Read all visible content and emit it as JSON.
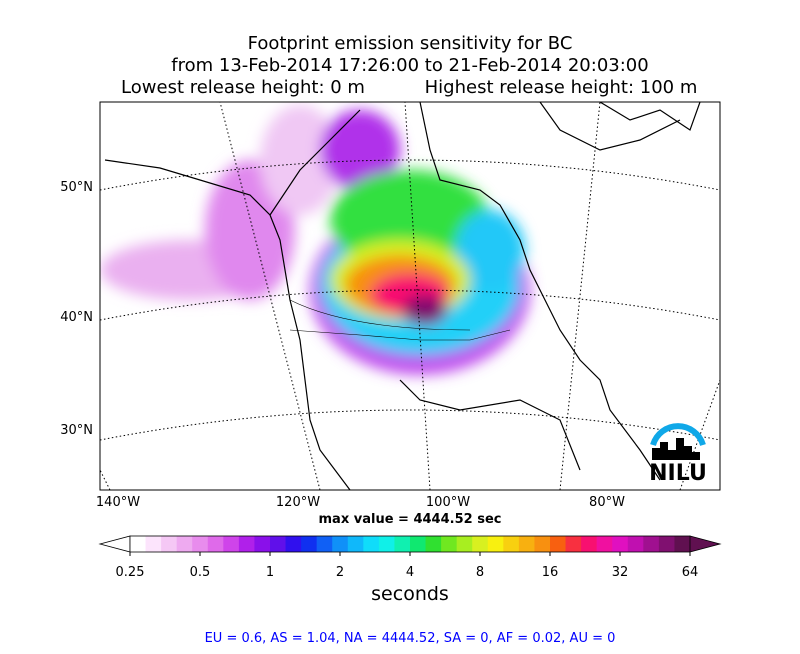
{
  "header": {
    "title_lines": [
      "Footprint emission sensitivity for BC",
      "from 13-Feb-2014 17:26:00 to 21-Feb-2014 20:03:00",
      "Lowest release height: 0 m",
      "Highest release height: 100 m"
    ]
  },
  "map": {
    "lon_labels": [
      "140°W",
      "120°W",
      "100°W",
      "80°W"
    ],
    "lat_labels": [
      "50°N",
      "40°N",
      "30°N"
    ],
    "logo": "NILU",
    "max_value": "max value = 4444.52 sec"
  },
  "colorbar": {
    "label": "seconds",
    "log": true,
    "lim": [
      0.25,
      64
    ],
    "ticks": [
      0.25,
      0.5,
      1,
      2,
      4,
      8,
      16,
      32,
      64
    ],
    "colors": [
      "#ffffff",
      "#fce4fc",
      "#f5c8f5",
      "#eeaaf0",
      "#e88ced",
      "#df6aea",
      "#cf44ea",
      "#b020ea",
      "#8a10ea",
      "#6010ea",
      "#3010ee",
      "#1030f0",
      "#1060f5",
      "#1090f8",
      "#10b8fa",
      "#10dcfa",
      "#10f0e8",
      "#10f0b0",
      "#10e870",
      "#30e030",
      "#70e820",
      "#a8ee20",
      "#d8f020",
      "#f8f010",
      "#f8d010",
      "#f8b010",
      "#f89010",
      "#f86010",
      "#f83040",
      "#f81070",
      "#f010a0",
      "#e010c0",
      "#c010b0",
      "#a01090",
      "#801070",
      "#601050"
    ]
  },
  "footer": {
    "text": "EU = 0.6,  AS = 1.04,  NA = 4444.52,  SA = 0,  AF = 0.02,  AU = 0"
  }
}
